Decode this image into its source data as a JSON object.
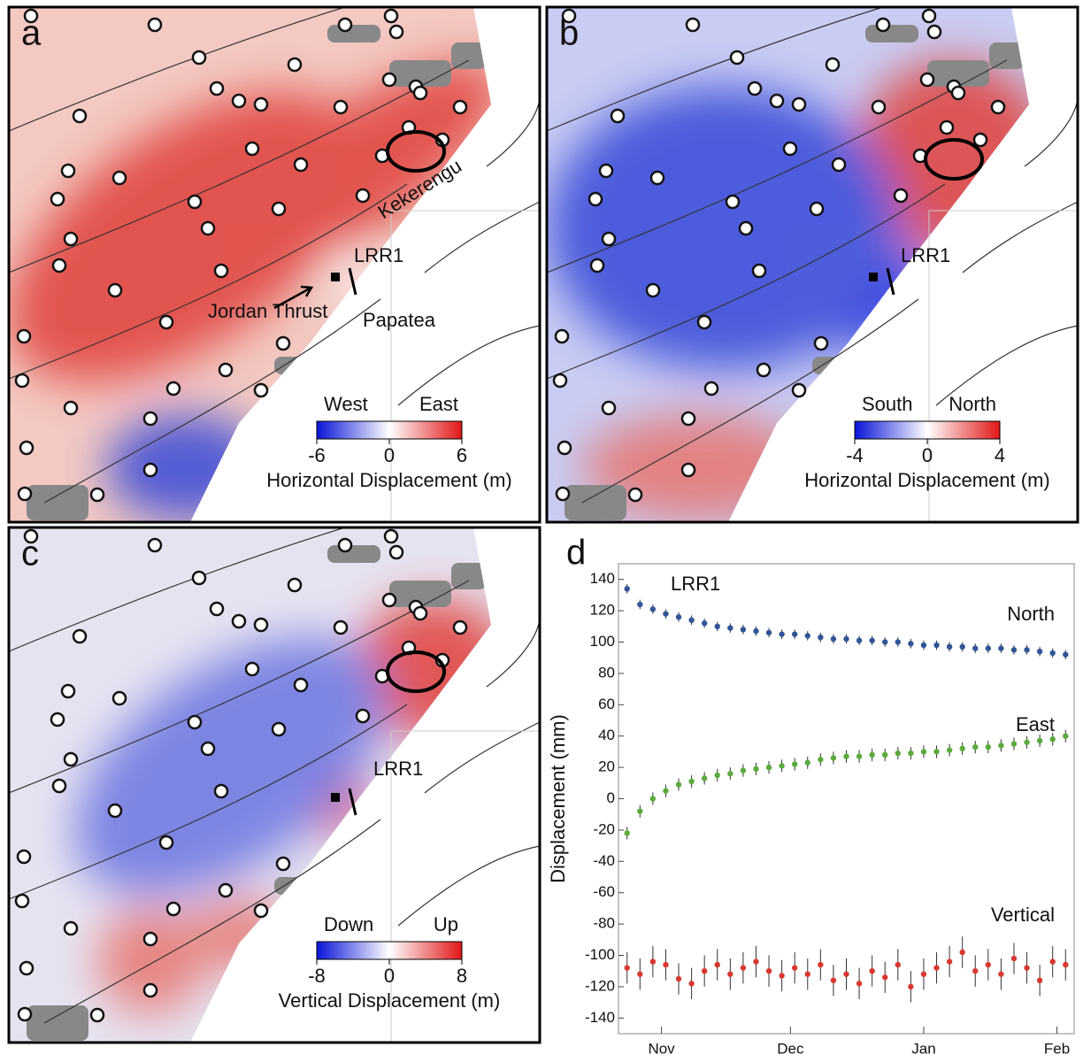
{
  "panels": [
    {
      "letter": "a",
      "annotations": [
        "Kekerengu",
        "LRR1",
        "Jordan Thrust",
        "Papatea"
      ],
      "colorbar": {
        "left": "West",
        "right": "East",
        "lim": [
          -6,
          6
        ],
        "ticks": [
          -6,
          0,
          6
        ],
        "label": "Horizontal Displacement (m)"
      }
    },
    {
      "letter": "b",
      "annotations": [
        "LRR1"
      ],
      "colorbar": {
        "left": "South",
        "right": "North",
        "lim": [
          -4,
          4
        ],
        "ticks": [
          -4,
          0,
          4
        ],
        "label": "Horizontal Displacement (m)"
      }
    },
    {
      "letter": "c",
      "annotations": [
        "LRR1"
      ],
      "colorbar": {
        "left": "Down",
        "right": "Up",
        "lim": [
          -8,
          8
        ],
        "ticks": [
          -8,
          0,
          8
        ],
        "label": "Vertical Displacement (m)"
      }
    }
  ],
  "chart_data": {
    "type": "scatter",
    "letter": "d",
    "annotation": "LRR1",
    "y_label": "Displacement (mm)",
    "x": [
      -8,
      -5,
      -2,
      1,
      4,
      7,
      10,
      13,
      16,
      19,
      22,
      25,
      28,
      31,
      34,
      37,
      40,
      43,
      46,
      49,
      52,
      55,
      58,
      61,
      64,
      67,
      70,
      73,
      76,
      79,
      82,
      85,
      88,
      91,
      94
    ],
    "xlim": [
      -10,
      96
    ],
    "xticks": [
      {
        "value": 0,
        "label": "Nov"
      },
      {
        "value": 30,
        "label": "Dec"
      },
      {
        "value": 61,
        "label": "Jan"
      },
      {
        "value": 92,
        "label": "Feb"
      }
    ],
    "ylim": [
      -150,
      150
    ],
    "yticks": [
      -140,
      -120,
      -100,
      -80,
      -60,
      -40,
      -20,
      0,
      20,
      40,
      60,
      80,
      100,
      120,
      140
    ],
    "series": [
      {
        "name": "North",
        "color": "#2f5597",
        "values": [
          134,
          124,
          121,
          118,
          116,
          114,
          112,
          110,
          109,
          108,
          107,
          106,
          105,
          105,
          104,
          103,
          102,
          102,
          101,
          101,
          100,
          100,
          99,
          98,
          98,
          97,
          97,
          96,
          96,
          96,
          95,
          95,
          94,
          93,
          92
        ],
        "errors": [
          3,
          3,
          3,
          3,
          3,
          3,
          3,
          3,
          3,
          3,
          3,
          3,
          3,
          3,
          3,
          3,
          3,
          3,
          3,
          3,
          3,
          3,
          3,
          3,
          3,
          3,
          3,
          3,
          3,
          3,
          3,
          3,
          3,
          3,
          3
        ]
      },
      {
        "name": "East",
        "color": "#5aab3c",
        "values": [
          -22,
          -8,
          0,
          5,
          9,
          11,
          13,
          15,
          16,
          18,
          19,
          20,
          21,
          22,
          23,
          25,
          26,
          27,
          27,
          28,
          28,
          29,
          29,
          30,
          30,
          31,
          32,
          33,
          33,
          34,
          35,
          36,
          37,
          38,
          40
        ],
        "errors": [
          4,
          4,
          4,
          4,
          4,
          4,
          4,
          4,
          4,
          4,
          4,
          4,
          4,
          4,
          4,
          4,
          4,
          4,
          4,
          4,
          4,
          4,
          4,
          4,
          4,
          4,
          4,
          4,
          4,
          4,
          4,
          4,
          4,
          4,
          4
        ]
      },
      {
        "name": "Vertical",
        "color": "#d9382f",
        "values": [
          -108,
          -112,
          -104,
          -106,
          -115,
          -118,
          -110,
          -106,
          -112,
          -108,
          -104,
          -110,
          -113,
          -108,
          -112,
          -106,
          -116,
          -112,
          -118,
          -110,
          -114,
          -106,
          -120,
          -112,
          -108,
          -104,
          -98,
          -110,
          -106,
          -112,
          -102,
          -108,
          -116,
          -104,
          -106
        ],
        "errors": [
          10,
          10,
          10,
          10,
          10,
          10,
          10,
          10,
          10,
          10,
          10,
          10,
          10,
          10,
          10,
          10,
          10,
          10,
          10,
          10,
          10,
          10,
          10,
          10,
          10,
          10,
          10,
          10,
          10,
          10,
          10,
          10,
          10,
          10,
          10
        ]
      }
    ]
  }
}
